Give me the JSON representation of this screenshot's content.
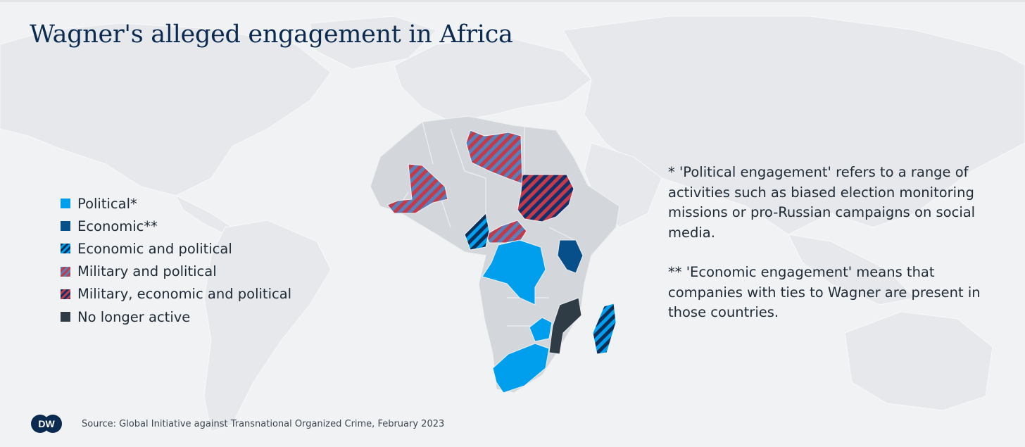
{
  "title": "Wagner's alleged engagement in Africa",
  "legend": [
    {
      "label": "Political*",
      "pattern": "political"
    },
    {
      "label": "Economic**",
      "pattern": "economic"
    },
    {
      "label": "Economic and political",
      "pattern": "econ-pol"
    },
    {
      "label": "Military and political",
      "pattern": "mil-pol"
    },
    {
      "label": "Military, economic and political",
      "pattern": "mil-econ-pol"
    },
    {
      "label": "No longer active",
      "pattern": "inactive"
    }
  ],
  "notes": {
    "political": "* 'Political engagement' refers to a range of activities such as biased election monitoring missions or pro-Russian campaigns on social media.",
    "economic": "** 'Economic engagement' means that companies with ties to Wagner are present in those countries."
  },
  "source": "Source: Global Initiative against Transnational Organized Crime, February 2023",
  "logo": {
    "text": "DW",
    "icon": "dw-logo-icon"
  },
  "colors": {
    "political": "#009fee",
    "economic": "#074f8a",
    "military": "#c43a48",
    "inactive": "#2f3b45",
    "land": "#d3d6da",
    "background": "#f1f2f4",
    "world_land": "#e6e8eb",
    "title": "#0b2a4f"
  },
  "countries": [
    {
      "name": "Mali",
      "status": "Military and political"
    },
    {
      "name": "Libya",
      "status": "Military and political"
    },
    {
      "name": "Sudan",
      "status": "Military, economic and political"
    },
    {
      "name": "Central African Republic",
      "status": "Military and political"
    },
    {
      "name": "Cameroon",
      "status": "Economic and political"
    },
    {
      "name": "Democratic Republic of the Congo",
      "status": "Political"
    },
    {
      "name": "Kenya",
      "status": "Economic"
    },
    {
      "name": "Zimbabwe",
      "status": "Political"
    },
    {
      "name": "South Africa",
      "status": "Political"
    },
    {
      "name": "Mozambique",
      "status": "No longer active"
    },
    {
      "name": "Madagascar",
      "status": "Economic and political"
    }
  ]
}
